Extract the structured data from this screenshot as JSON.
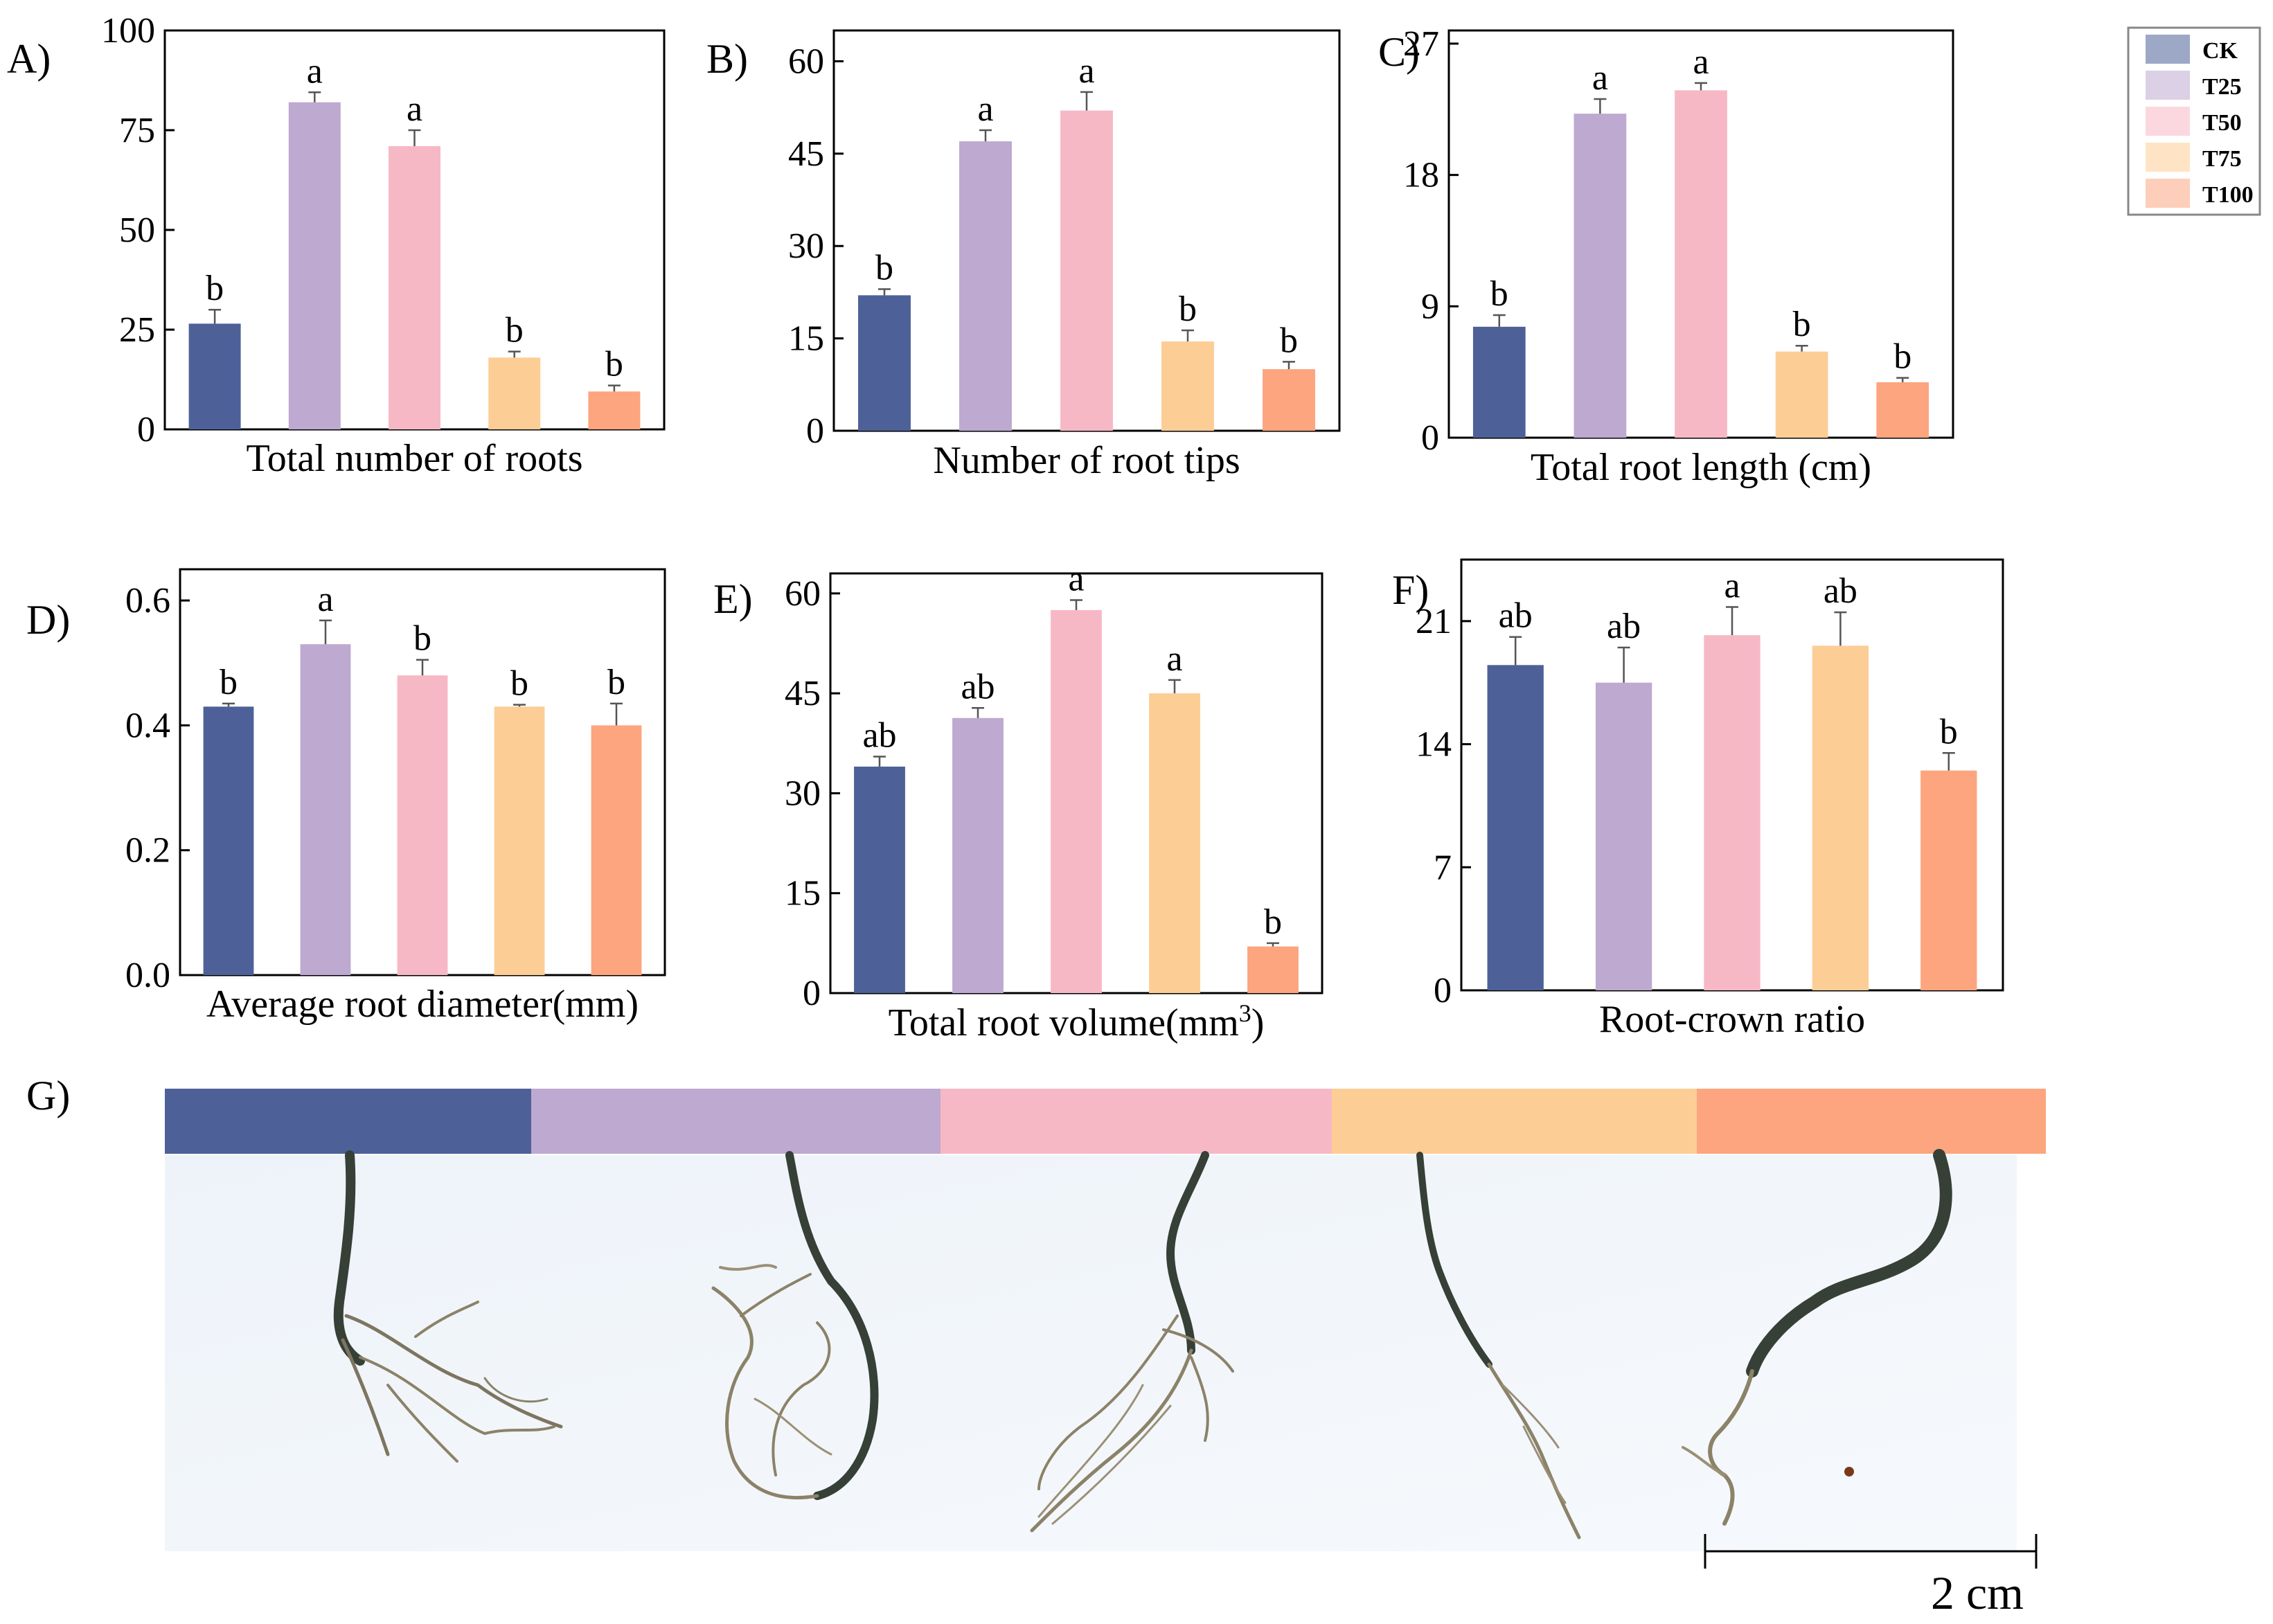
{
  "colors": {
    "CK": "#4d6198",
    "T25": "#bea9d0",
    "T50": "#f7b8c6",
    "T75": "#fdcd96",
    "T100": "#fca57f",
    "root": "#3e4a3a",
    "root_light": "#8a8066",
    "photo_bg": "#f1f5fa"
  },
  "legend": {
    "items": [
      "CK",
      "T25",
      "T50",
      "T75",
      "T100"
    ]
  },
  "chart_data": [
    {
      "panel": "A)",
      "type": "bar",
      "xlabel": "Total number of roots",
      "categories": [
        "CK",
        "T25",
        "T50",
        "T75",
        "T100"
      ],
      "values": [
        26.5,
        82,
        71,
        18,
        9.5
      ],
      "errors": [
        3.5,
        2.5,
        4,
        1.5,
        1.5
      ],
      "letters": [
        "b",
        "a",
        "a",
        "b",
        "b"
      ],
      "ylim": [
        0,
        100
      ],
      "yticks": [
        "0",
        "25",
        "50",
        "75",
        "100"
      ]
    },
    {
      "panel": "B)",
      "type": "bar",
      "xlabel": "Number of root tips",
      "categories": [
        "CK",
        "T25",
        "T50",
        "T75",
        "T100"
      ],
      "values": [
        22,
        47,
        52,
        14.5,
        10
      ],
      "errors": [
        1,
        1.8,
        3,
        1.8,
        1.2
      ],
      "letters": [
        "b",
        "a",
        "a",
        "b",
        "b"
      ],
      "ylim": [
        0,
        65
      ],
      "yticks": [
        "0",
        "15",
        "30",
        "45",
        "60"
      ]
    },
    {
      "panel": "C)",
      "type": "bar",
      "xlabel": "Total root length (cm)",
      "categories": [
        "CK",
        "T25",
        "T50",
        "T75",
        "T100"
      ],
      "values": [
        7.6,
        22.2,
        23.8,
        5.9,
        3.8
      ],
      "errors": [
        0.8,
        1,
        0.5,
        0.4,
        0.3
      ],
      "letters": [
        "b",
        "a",
        "a",
        "b",
        "b"
      ],
      "ylim": [
        0,
        27.9
      ],
      "yticks": [
        "0",
        "9",
        "18",
        "27"
      ]
    },
    {
      "panel": "D)",
      "type": "bar",
      "xlabel": "Average root diameter(mm)",
      "categories": [
        "CK",
        "T25",
        "T50",
        "T75",
        "T100"
      ],
      "values": [
        0.43,
        0.53,
        0.48,
        0.43,
        0.4
      ],
      "errors": [
        0.005,
        0.038,
        0.025,
        0.003,
        0.035
      ],
      "letters": [
        "b",
        "a",
        "b",
        "b",
        "b"
      ],
      "ylim": [
        0,
        0.65
      ],
      "yticks": [
        "0.0",
        "0.2",
        "0.4",
        "0.6"
      ]
    },
    {
      "panel": "E)",
      "type": "bar",
      "xlabel": "Total root volume(mm",
      "xlabel_sup": "3",
      "xlabel_end": ")",
      "categories": [
        "CK",
        "T25",
        "T50",
        "T75",
        "T100"
      ],
      "values": [
        34,
        41.3,
        57.5,
        45,
        7
      ],
      "errors": [
        1.5,
        1.5,
        1.5,
        2,
        0.5
      ],
      "letters": [
        "ab",
        "ab",
        "a",
        "a",
        "b"
      ],
      "ylim": [
        0,
        63
      ],
      "yticks": [
        "0",
        "15",
        "30",
        "45",
        "60"
      ]
    },
    {
      "panel": "F)",
      "type": "bar",
      "xlabel": "Root-crown ratio",
      "categories": [
        "CK",
        "T25",
        "T50",
        "T75",
        "T100"
      ],
      "values": [
        18.5,
        17.5,
        20.2,
        19.6,
        12.5
      ],
      "errors": [
        1.6,
        2,
        1.6,
        1.9,
        1
      ],
      "letters": [
        "ab",
        "ab",
        "a",
        "ab",
        "b"
      ],
      "ylim": [
        0,
        24.5
      ],
      "yticks": [
        "0",
        "7",
        "14",
        "21"
      ]
    }
  ],
  "panel_g": {
    "label": "G)",
    "scale_bar": "2 cm"
  }
}
